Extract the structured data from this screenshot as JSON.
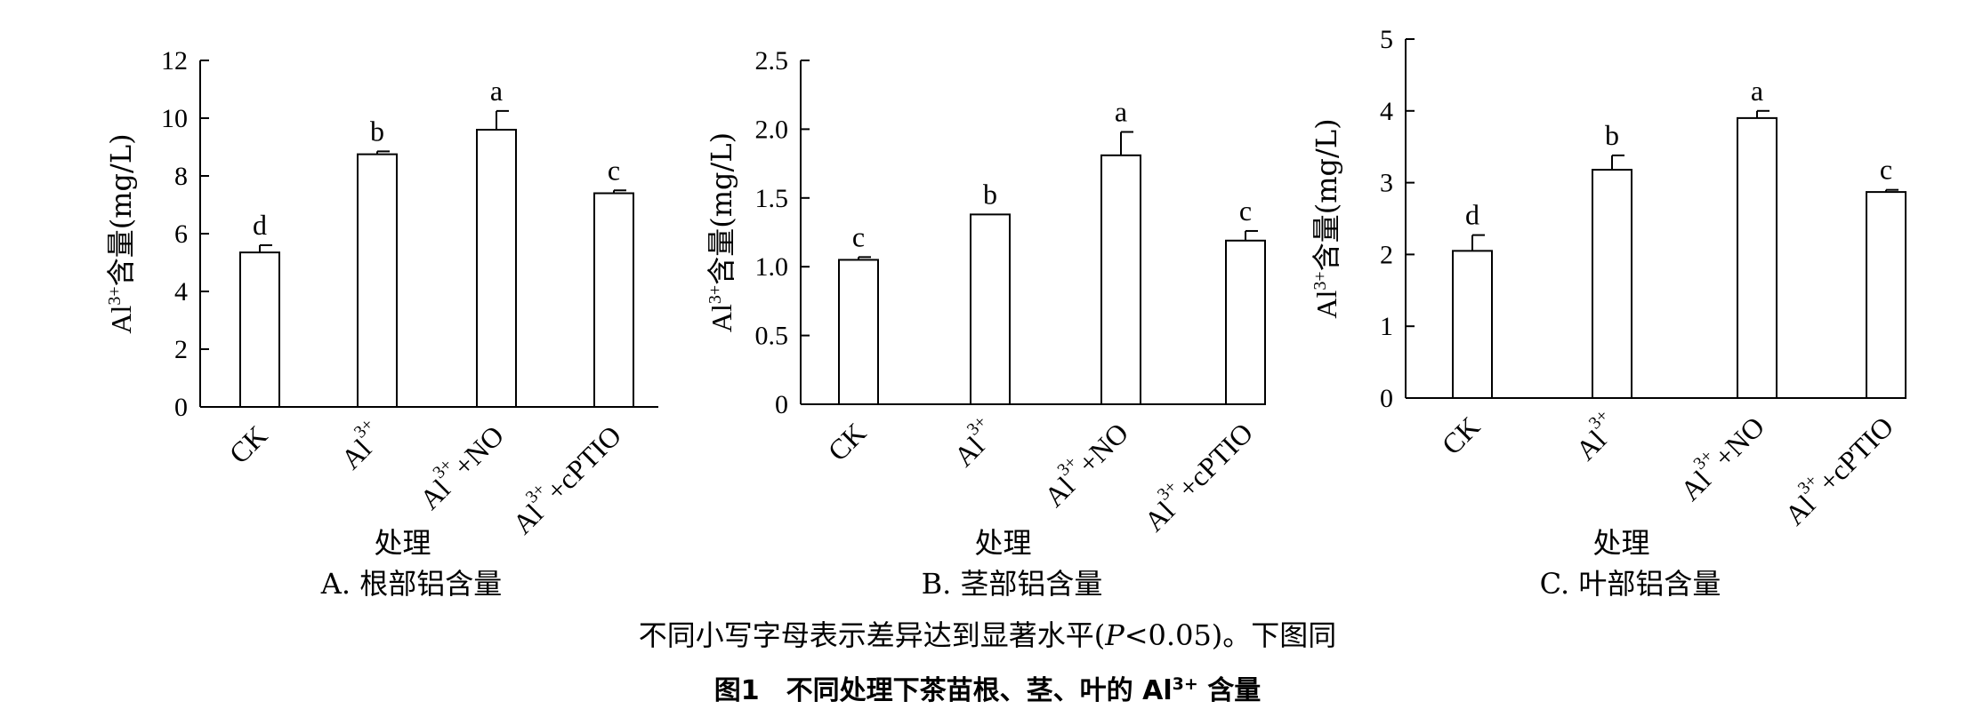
{
  "chart_data": [
    {
      "type": "bar",
      "panel": "A",
      "ylabel_base": "Al",
      "ylabel_sup": "3+",
      "ylabel_rest": "含量(mg/L)",
      "xlabel": "处理",
      "categories": [
        {
          "base": "CK",
          "sup": "",
          "rest": ""
        },
        {
          "base": "Al",
          "sup": "3+",
          "rest": ""
        },
        {
          "base": "Al",
          "sup": "3+",
          "rest": "+NO"
        },
        {
          "base": "Al",
          "sup": "3+",
          "rest": "+cPTIO"
        }
      ],
      "values": [
        5.35,
        8.75,
        9.6,
        7.4
      ],
      "errors": [
        0.25,
        0.1,
        0.65,
        0.1
      ],
      "letters": [
        "d",
        "b",
        "a",
        "c"
      ],
      "ylim": [
        0,
        12
      ],
      "yticks": [
        "0",
        "2",
        "4",
        "6",
        "8",
        "10",
        "12"
      ],
      "title": "A. 根部铝含量"
    },
    {
      "type": "bar",
      "panel": "B",
      "ylabel_base": "Al",
      "ylabel_sup": "3+",
      "ylabel_rest": "含量(mg/L)",
      "xlabel": "处理",
      "categories": [
        {
          "base": "CK",
          "sup": "",
          "rest": ""
        },
        {
          "base": "Al",
          "sup": "3+",
          "rest": ""
        },
        {
          "base": "Al",
          "sup": "3+",
          "rest": "+NO"
        },
        {
          "base": "Al",
          "sup": "3+",
          "rest": "+cPTIO"
        }
      ],
      "values": [
        1.05,
        1.38,
        1.81,
        1.19
      ],
      "errors": [
        0.02,
        0.0,
        0.17,
        0.07
      ],
      "letters": [
        "c",
        "b",
        "a",
        "c"
      ],
      "ylim": [
        0,
        2.5
      ],
      "yticks": [
        "0",
        "0.5",
        "1.0",
        "1.5",
        "2.0",
        "2.5"
      ],
      "title": "B. 茎部铝含量"
    },
    {
      "type": "bar",
      "panel": "C",
      "ylabel_base": "Al",
      "ylabel_sup": "3+",
      "ylabel_rest": "含量(mg/L)",
      "xlabel": "处理",
      "categories": [
        {
          "base": "CK",
          "sup": "",
          "rest": ""
        },
        {
          "base": "Al",
          "sup": "3+",
          "rest": ""
        },
        {
          "base": "Al",
          "sup": "3+",
          "rest": "+NO"
        },
        {
          "base": "Al",
          "sup": "3+",
          "rest": "+cPTIO"
        }
      ],
      "values": [
        2.05,
        3.18,
        3.9,
        2.87
      ],
      "errors": [
        0.22,
        0.2,
        0.1,
        0.03
      ],
      "letters": [
        "d",
        "b",
        "a",
        "c"
      ],
      "ylim": [
        0,
        5
      ],
      "yticks": [
        "0",
        "1",
        "2",
        "3",
        "4",
        "5"
      ],
      "title": "C. 叶部铝含量"
    }
  ],
  "note_prefix": "不同小写字母表示差异达到显著水平(",
  "note_italic": "P",
  "note_suffix": "<0.05)。下图同",
  "caption_prefix": "图1　不同处理下茶苗根、茎、叶的 Al",
  "caption_sup": "3+",
  "caption_suffix": " 含量"
}
